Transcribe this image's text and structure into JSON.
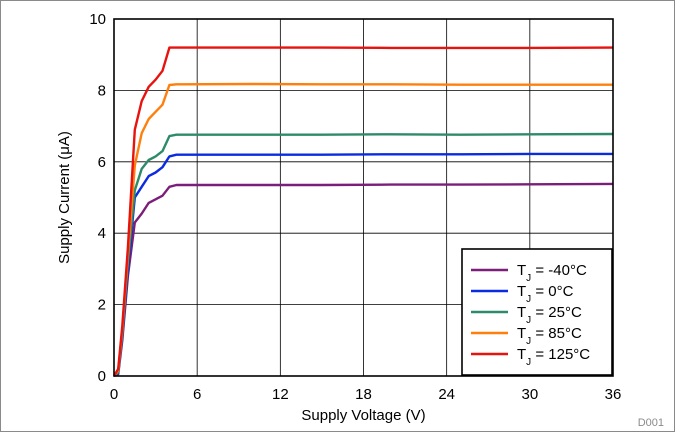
{
  "chart_data": {
    "type": "line",
    "title": "",
    "xlabel": "Supply Voltage (V)",
    "ylabel": "Supply Current (μA)",
    "xlim": [
      0,
      36
    ],
    "ylim": [
      0,
      10
    ],
    "xticks": [
      0,
      6,
      12,
      18,
      24,
      30,
      36
    ],
    "yticks": [
      0,
      2,
      4,
      6,
      8,
      10
    ],
    "grid": true,
    "legend_position": "bottom-right",
    "footnote": "D001",
    "series": [
      {
        "name": "T",
        "subscript": "J",
        "suffix": " = -40°C",
        "color": "#7B1E7A",
        "x": [
          0,
          0.3,
          0.6,
          1.0,
          1.5,
          2.0,
          2.5,
          3.0,
          3.5,
          4.0,
          4.5,
          5,
          10,
          15,
          20,
          25,
          30,
          36
        ],
        "y": [
          0,
          0.05,
          1.0,
          2.8,
          4.3,
          4.55,
          4.85,
          4.95,
          5.05,
          5.3,
          5.35,
          5.35,
          5.35,
          5.35,
          5.36,
          5.36,
          5.37,
          5.38
        ]
      },
      {
        "name": "T",
        "subscript": "J",
        "suffix": " = 0°C",
        "color": "#0A2BE0",
        "x": [
          0,
          0.3,
          0.6,
          1.0,
          1.5,
          2.0,
          2.5,
          3.0,
          3.5,
          4.0,
          4.5,
          5,
          10,
          15,
          20,
          25,
          30,
          36
        ],
        "y": [
          0,
          0.08,
          1.1,
          3.0,
          5.0,
          5.3,
          5.6,
          5.7,
          5.85,
          6.15,
          6.2,
          6.2,
          6.2,
          6.2,
          6.21,
          6.21,
          6.22,
          6.22
        ]
      },
      {
        "name": "T",
        "subscript": "J",
        "suffix": " = 25°C",
        "color": "#2E8B6A",
        "x": [
          0,
          0.3,
          0.6,
          1.0,
          1.5,
          2.0,
          2.5,
          3.0,
          3.5,
          4.0,
          4.5,
          5,
          10,
          15,
          20,
          25,
          30,
          36
        ],
        "y": [
          0,
          0.1,
          1.2,
          3.2,
          5.2,
          5.8,
          6.05,
          6.15,
          6.3,
          6.72,
          6.76,
          6.76,
          6.76,
          6.76,
          6.77,
          6.76,
          6.77,
          6.78
        ]
      },
      {
        "name": "T",
        "subscript": "J",
        "suffix": " = 85°C",
        "color": "#FF7F0E",
        "x": [
          0,
          0.3,
          0.6,
          1.0,
          1.5,
          2.0,
          2.5,
          3.0,
          3.5,
          4.0,
          4.5,
          5,
          10,
          15,
          20,
          25,
          30,
          36
        ],
        "y": [
          0,
          0.15,
          1.3,
          3.4,
          5.9,
          6.8,
          7.2,
          7.4,
          7.6,
          8.15,
          8.17,
          8.17,
          8.18,
          8.17,
          8.17,
          8.16,
          8.16,
          8.16
        ]
      },
      {
        "name": "T",
        "subscript": "J",
        "suffix": " = 125°C",
        "color": "#E8120E",
        "x": [
          0,
          0.3,
          0.6,
          1.0,
          1.5,
          2.0,
          2.5,
          3.0,
          3.5,
          4.0,
          4.5,
          5,
          10,
          15,
          20,
          25,
          30,
          36
        ],
        "y": [
          0,
          0.2,
          1.4,
          3.6,
          6.9,
          7.7,
          8.1,
          8.3,
          8.55,
          9.2,
          9.2,
          9.2,
          9.2,
          9.2,
          9.19,
          9.19,
          9.19,
          9.2
        ]
      }
    ]
  }
}
